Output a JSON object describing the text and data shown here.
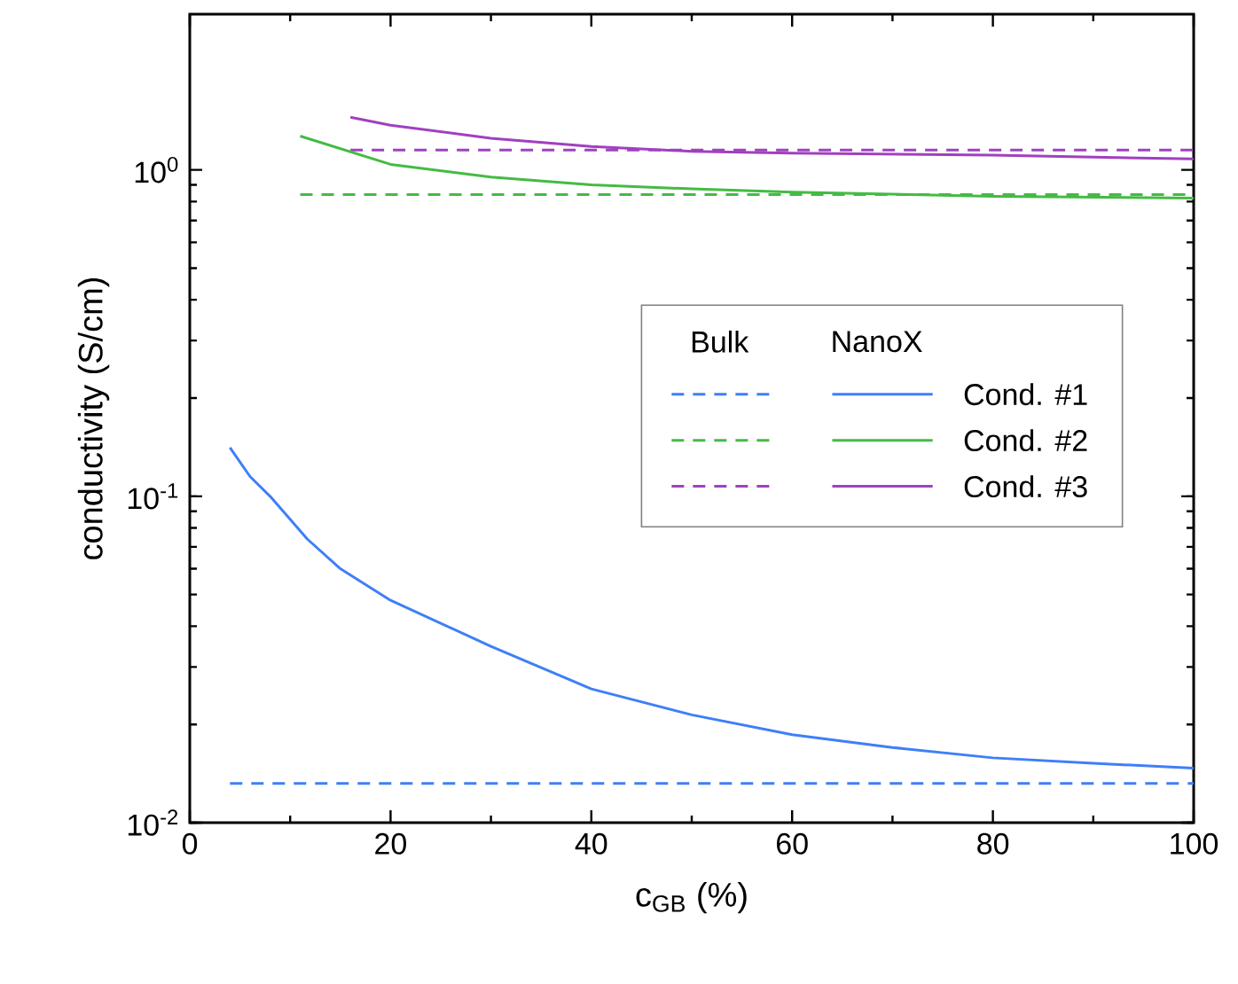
{
  "chart_data": {
    "type": "line",
    "xlabel": "c$_{GB}$ (%)",
    "ylabel": "conductivity (S/cm)",
    "log": "y",
    "xlim": [
      0,
      100
    ],
    "xticks": [
      0,
      20,
      40,
      60,
      80,
      100
    ],
    "ylim": [
      0.01,
      3
    ],
    "yticks": [
      {
        "value": 0.01,
        "label": "10$^{-2}$"
      },
      {
        "value": 0.1,
        "label": "10$^{-1}$"
      },
      {
        "value": 1,
        "label": "10$^{0}$"
      }
    ],
    "legend": "right",
    "annotations": [
      "Bulk",
      "NanoX"
    ],
    "series": [
      {
        "color": "#3f7ff7",
        "line_style": "dashed",
        "x": [
          4,
          100
        ],
        "values": [
          0.0132,
          0.0132
        ]
      },
      {
        "color": "#44bb44",
        "line_style": "dashed",
        "x": [
          11,
          100
        ],
        "values": [
          0.84,
          0.84
        ]
      },
      {
        "color": "#a040c0",
        "line_style": "dashed",
        "x": [
          16,
          100
        ],
        "values": [
          1.15,
          1.15
        ]
      },
      {
        "name": "Cond. #1",
        "color": "#3f7ff7",
        "line_style": "solid",
        "x": [
          4,
          6,
          8,
          11.7,
          15,
          20,
          30,
          40,
          50,
          60,
          70,
          80,
          90,
          100
        ],
        "values": [
          0.141,
          0.115,
          0.1,
          0.074,
          0.06,
          0.048,
          0.0347,
          0.0257,
          0.0214,
          0.0186,
          0.017,
          0.0158,
          0.0152,
          0.0147
        ]
      },
      {
        "name": "Cond. #2",
        "color": "#44bb44",
        "line_style": "solid",
        "x": [
          11,
          20,
          30,
          40,
          50,
          60,
          80,
          100
        ],
        "values": [
          1.27,
          1.04,
          0.95,
          0.9,
          0.875,
          0.855,
          0.83,
          0.82
        ]
      },
      {
        "name": "Cond. #3",
        "color": "#a040c0",
        "line_style": "solid",
        "x": [
          16,
          20,
          30,
          40,
          50,
          60,
          80,
          100
        ],
        "values": [
          1.45,
          1.37,
          1.25,
          1.18,
          1.14,
          1.125,
          1.11,
          1.08
        ]
      }
    ]
  }
}
